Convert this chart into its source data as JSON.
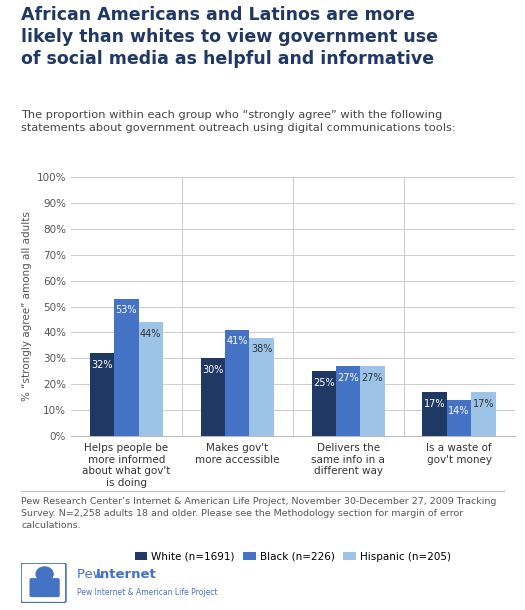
{
  "title": "African Americans and Latinos are more\nlikely than whites to view government use\nof social media as helpful and informative",
  "subtitle": "The proportion within each group who “strongly agree” with the following\nstatements about government outreach using digital communications tools:",
  "categories": [
    "Helps people be\nmore informed\nabout what gov't\nis doing",
    "Makes gov't\nmore accessible",
    "Delivers the\nsame info in a\ndifferent way",
    "Is a waste of\ngov't money"
  ],
  "series": {
    "White (n=1691)": [
      32,
      30,
      25,
      17
    ],
    "Black (n=226)": [
      53,
      41,
      27,
      14
    ],
    "Hispanic (n=205)": [
      44,
      38,
      27,
      17
    ]
  },
  "colors": {
    "White (n=1691)": "#1f3864",
    "Black (n=226)": "#4472c4",
    "Hispanic (n=205)": "#9dc3e6"
  },
  "label_colors": {
    "White (n=1691)": "#ffffff",
    "Black (n=226)": "#ffffff",
    "Hispanic (n=205)": "#333333"
  },
  "ylabel": "% “strongly agree” among all adults",
  "ylim": [
    0,
    100
  ],
  "yticks": [
    0,
    10,
    20,
    30,
    40,
    50,
    60,
    70,
    80,
    90,
    100
  ],
  "ytick_labels": [
    "0%",
    "10%",
    "20%",
    "30%",
    "40%",
    "50%",
    "60%",
    "70%",
    "80%",
    "90%",
    "100%"
  ],
  "footnote": "Pew Research Center’s Internet & American Life Project, November 30-December 27, 2009 Tracking\nSurvey. N=2,258 adults 18 and older. Please see the Methodology section for margin of error\ncalculations.",
  "background_color": "#ffffff",
  "title_color": "#1f3864",
  "bar_width": 0.22,
  "title_fontsize": 12.5,
  "subtitle_fontsize": 8.2,
  "ylabel_fontsize": 7.5,
  "tick_fontsize": 7.5,
  "label_fontsize": 7.0,
  "legend_fontsize": 7.5,
  "footnote_fontsize": 6.8
}
